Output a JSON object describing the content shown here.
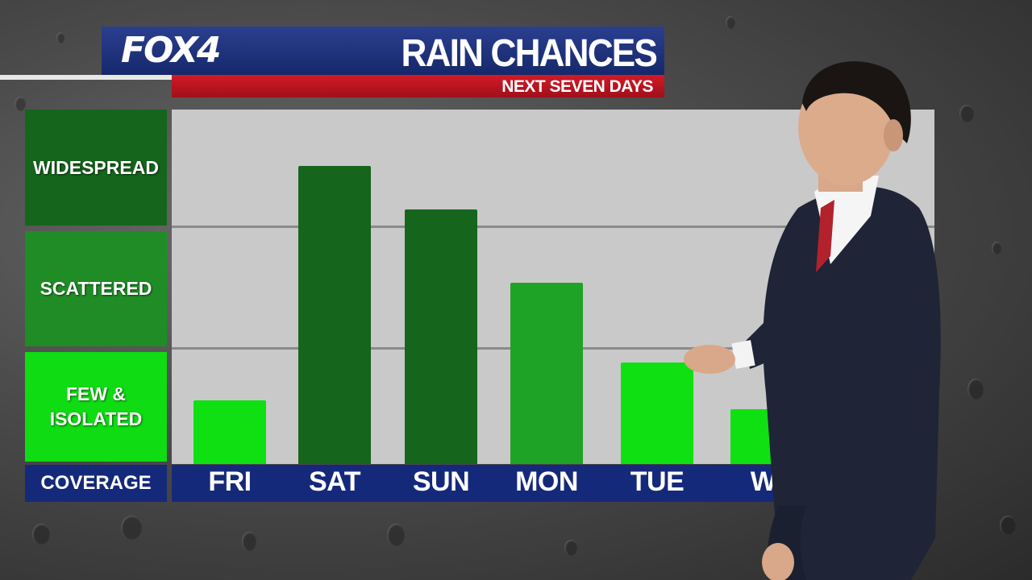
{
  "header": {
    "logo": "FOX4",
    "title": "RAIN CHANCES",
    "subtitle": "NEXT SEVEN DAYS"
  },
  "legend": {
    "widespread": "WIDESPREAD",
    "scattered": "SCATTERED",
    "few_line1": "FEW &",
    "few_line2": "ISOLATED",
    "coverage": "COVERAGE"
  },
  "colors": {
    "widespread": "#15651d",
    "scattered": "#1f8c26",
    "few": "#0fdc12",
    "bar_widespread": "#15651d",
    "bar_scattered": "#1fa326",
    "bar_few": "#0fe012",
    "strip_blue": "#15297b"
  },
  "chart_data": {
    "type": "bar",
    "categories": [
      "FRI",
      "SAT",
      "SUN",
      "MON",
      "TUE",
      "WI"
    ],
    "values": [
      0.52,
      2.44,
      2.08,
      1.48,
      0.83,
      0.45
    ],
    "bar_levels": [
      "few",
      "widespread",
      "widespread",
      "scattered",
      "few",
      "few"
    ],
    "ylim": [
      0,
      2.9
    ],
    "y_categories": [
      "FEW & ISOLATED",
      "SCATTERED",
      "WIDESPREAD"
    ],
    "grid": true
  }
}
